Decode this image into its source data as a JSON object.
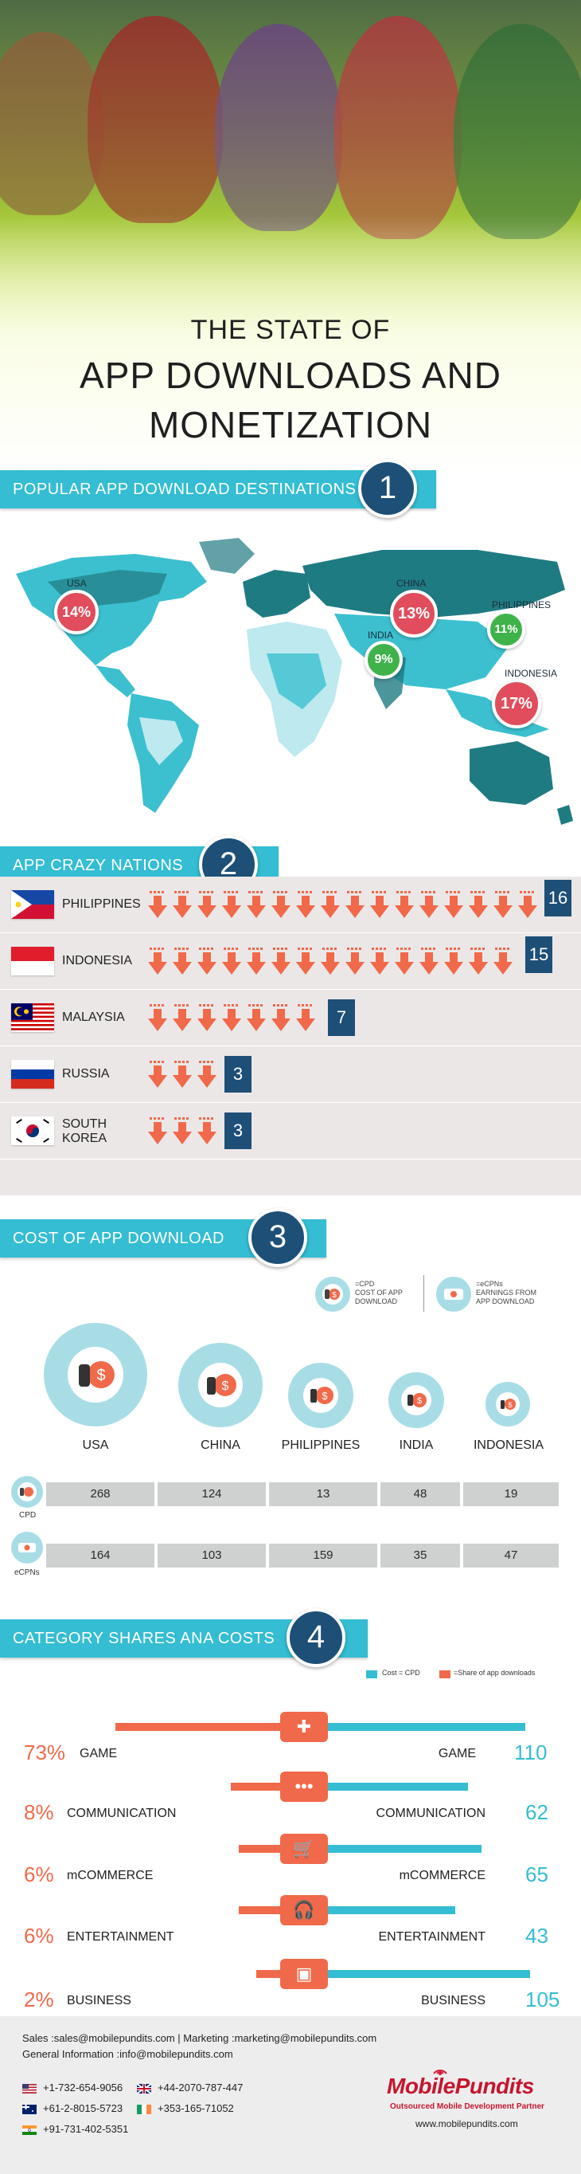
{
  "hero": {
    "line1": "THE STATE OF",
    "line2": "APP DOWNLOADS AND",
    "line3": "MONETIZATION"
  },
  "section1": {
    "title": "POPULAR APP DOWNLOAD DESTINATIONS",
    "number": "1"
  },
  "map": {
    "usa": {
      "name": "USA",
      "value": "14%"
    },
    "china": {
      "name": "CHINA",
      "value": "13%"
    },
    "philippines": {
      "name": "PHILIPPINES",
      "value": "11%"
    },
    "india": {
      "name": "INDIA",
      "value": "9%"
    },
    "indonesia": {
      "name": "INDONESIA",
      "value": "17%"
    },
    "colors": {
      "dark": "#1f7b82",
      "mid": "#3cc0cf",
      "light": "#bde9ef",
      "red": "#e14d5c",
      "green": "#3fb24a"
    }
  },
  "section2": {
    "title": "APP CRAZY NATIONS",
    "number": "2"
  },
  "nations": [
    {
      "name": "PHILIPPINES",
      "name2": "",
      "count": "16"
    },
    {
      "name": "INDONESIA",
      "name2": "",
      "count": "15"
    },
    {
      "name": "MALAYSIA",
      "name2": "",
      "count": "7"
    },
    {
      "name": "RUSSIA",
      "name2": "",
      "count": "3"
    },
    {
      "name": "SOUTH",
      "name2": "KOREA",
      "count": "3"
    }
  ],
  "section3": {
    "title": "COST OF APP DOWNLOAD",
    "number": "3"
  },
  "cost_legend": {
    "cpd": {
      "l1": "=CPD",
      "l2": "COST OF APP",
      "l3": "DOWNLOAD"
    },
    "ecpn": {
      "l1": "=eCPNs",
      "l2": "EARNINGS FROM",
      "l3": "APP DOWNLOAD"
    }
  },
  "cost_countries": [
    "USA",
    "CHINA",
    "PHILIPPINES",
    "INDIA",
    "INDONESIA"
  ],
  "cost_rows": {
    "cpd": {
      "label": "CPD",
      "values": [
        "268",
        "124",
        "13",
        "48",
        "19"
      ]
    },
    "ecpn": {
      "label": "eCPNs",
      "values": [
        "164",
        "103",
        "159",
        "35",
        "47"
      ]
    }
  },
  "section4": {
    "title": "CATEGORY SHARES ANA COSTS",
    "number": "4"
  },
  "cat_legend": {
    "cost": "Cost = CPD",
    "share": "=Share of app downloads"
  },
  "categories": [
    {
      "pct": "73%",
      "name": "GAME",
      "value": "110",
      "icon": "gamepad-icon",
      "glyph": "✚"
    },
    {
      "pct": "8%",
      "name": "COMMUNICATION",
      "value": "62",
      "icon": "chat-icon",
      "glyph": "•••"
    },
    {
      "pct": "6%",
      "name": "mCOMMERCE",
      "value": "65",
      "icon": "cart-icon",
      "glyph": "🛒"
    },
    {
      "pct": "6%",
      "name": "ENTERTAINMENT",
      "value": "43",
      "icon": "headphones-icon",
      "glyph": "🎧"
    },
    {
      "pct": "2%",
      "name": "BUSINESS",
      "value": "105",
      "icon": "briefcase-icon",
      "glyph": "▣"
    }
  ],
  "footer": {
    "line1": "Sales :sales@mobilepundits.com | Marketing :marketing@mobilepundits.com",
    "line2": "General Information :info@mobilepundits.com",
    "phone_us": "+1-732-654-9056",
    "phone_uk": "+44-2070-787-447",
    "phone_au": "+61-2-8015-5723",
    "phone_ie": "+353-165-71052",
    "phone_in": "+91-731-402-5351",
    "brand": "MobilePundits",
    "tagline": "Outsourced Mobile Development Partner",
    "website": "www.mobilepundits.com"
  }
}
